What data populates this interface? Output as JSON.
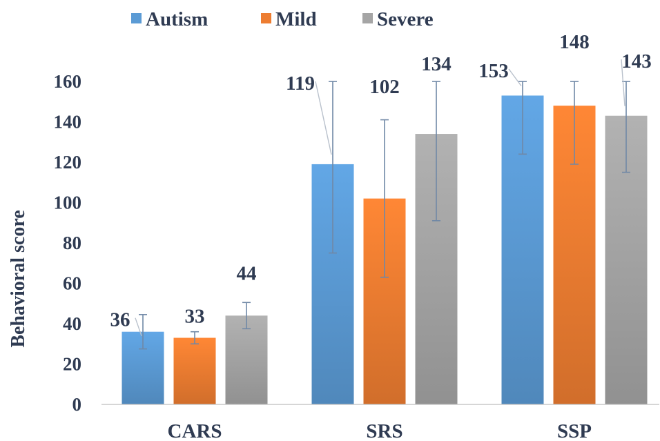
{
  "chart_data": {
    "type": "bar",
    "title": "",
    "xlabel": "",
    "ylabel": "Behavioral score",
    "ylim": [
      0,
      160
    ],
    "yticks": [
      0,
      20,
      40,
      60,
      80,
      100,
      120,
      140,
      160
    ],
    "grid": false,
    "legend_position": "top",
    "categories": [
      "CARS",
      "SRS",
      "SSP"
    ],
    "series": [
      {
        "name": "Autism",
        "color": "#5B9BD5",
        "values": [
          36,
          119,
          153
        ],
        "error_low": [
          27.5,
          75,
          124
        ],
        "error_high": [
          44.5,
          160,
          160
        ],
        "labels": [
          "36",
          "119",
          "153"
        ]
      },
      {
        "name": "Mild",
        "color": "#ED7D31",
        "values": [
          33,
          102,
          148
        ],
        "error_low": [
          30,
          63,
          119
        ],
        "error_high": [
          36,
          141,
          177
        ],
        "labels": [
          "33",
          "102",
          "148"
        ]
      },
      {
        "name": "Severe",
        "color": "#A5A5A5",
        "values": [
          44,
          134,
          143
        ],
        "error_low": [
          37.5,
          91,
          115
        ],
        "error_high": [
          50.5,
          160,
          160
        ],
        "labels": [
          "44",
          "134",
          "143"
        ]
      }
    ]
  }
}
